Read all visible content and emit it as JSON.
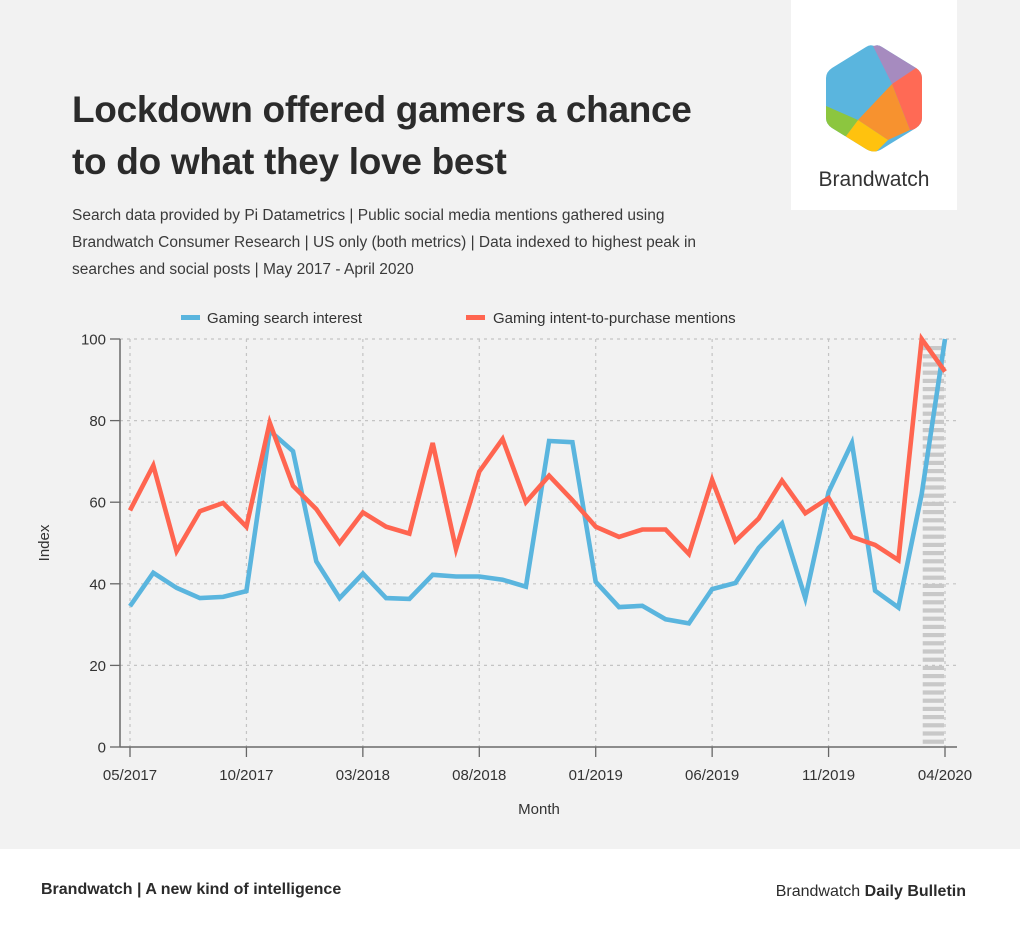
{
  "header": {
    "title": "Lockdown offered gamers a chance to do what they love best",
    "subtitle": "Search data provided by Pi Datametrics | Public social media mentions gathered using Brandwatch Consumer Research | US only (both metrics) | Data indexed to highest peak in searches and social posts | May 2017 - April 2020"
  },
  "logo": {
    "wordmark": "Brandwatch",
    "icon": "brandwatch-hexagon-icon",
    "colors": [
      "#5ab5de",
      "#a68bbf",
      "#ff6a55",
      "#f7922f",
      "#ffc20e",
      "#8cc63f"
    ]
  },
  "footer": {
    "left": "Brandwatch | A new kind of intelligence",
    "right_regular": "Brandwatch ",
    "right_bold": "Daily Bulletin"
  },
  "chart_data": {
    "type": "line",
    "title": "Lockdown offered gamers a chance to do what they love best",
    "xlabel": "Month",
    "ylabel": "Index",
    "ylim": [
      0,
      100
    ],
    "yticks": [
      0,
      20,
      40,
      60,
      80,
      100
    ],
    "grid": true,
    "legend_position": "top-center",
    "x": [
      "05/2017",
      "06/2017",
      "07/2017",
      "08/2017",
      "09/2017",
      "10/2017",
      "11/2017",
      "12/2017",
      "01/2018",
      "02/2018",
      "03/2018",
      "04/2018",
      "05/2018",
      "06/2018",
      "07/2018",
      "08/2018",
      "09/2018",
      "10/2018",
      "11/2018",
      "12/2018",
      "01/2019",
      "02/2019",
      "03/2019",
      "04/2019",
      "05/2019",
      "06/2019",
      "07/2019",
      "08/2019",
      "09/2019",
      "10/2019",
      "11/2019",
      "12/2019",
      "01/2020",
      "02/2020",
      "03/2020",
      "04/2020"
    ],
    "xtick_labels": [
      "05/2017",
      "10/2017",
      "03/2018",
      "08/2018",
      "01/2019",
      "06/2019",
      "11/2019",
      "04/2020"
    ],
    "highlight_band": {
      "from": "03/2020",
      "to": "04/2020",
      "pattern": "hatched",
      "color": "#c8c8c8"
    },
    "series": [
      {
        "name": "Gaming search interest",
        "color": "#5ab5de",
        "values": [
          34.5,
          42.7,
          39,
          36.5,
          36.8,
          38.2,
          77.5,
          72.5,
          45.5,
          36.5,
          42.5,
          36.5,
          36.3,
          42.2,
          41.8,
          41.8,
          41,
          39.3,
          75,
          74.7,
          40.5,
          34.3,
          34.6,
          31.3,
          30.3,
          38.7,
          40.2,
          48.8,
          54.8,
          36.5,
          62.5,
          74.5,
          38.3,
          34.2,
          62,
          100
        ]
      },
      {
        "name": "Gaming intent-to-purchase mentions",
        "color": "#ff6550",
        "values": [
          58,
          69,
          48,
          57.8,
          59.8,
          54,
          79.5,
          64,
          58.3,
          50,
          57.5,
          54,
          52.3,
          74.5,
          48.5,
          67.5,
          75.5,
          60,
          66.5,
          60.5,
          54,
          51.5,
          53.3,
          53.3,
          47.3,
          65.5,
          50.5,
          56,
          65.3,
          57.3,
          61,
          51.5,
          49.5,
          45.8,
          100,
          92
        ]
      }
    ]
  }
}
